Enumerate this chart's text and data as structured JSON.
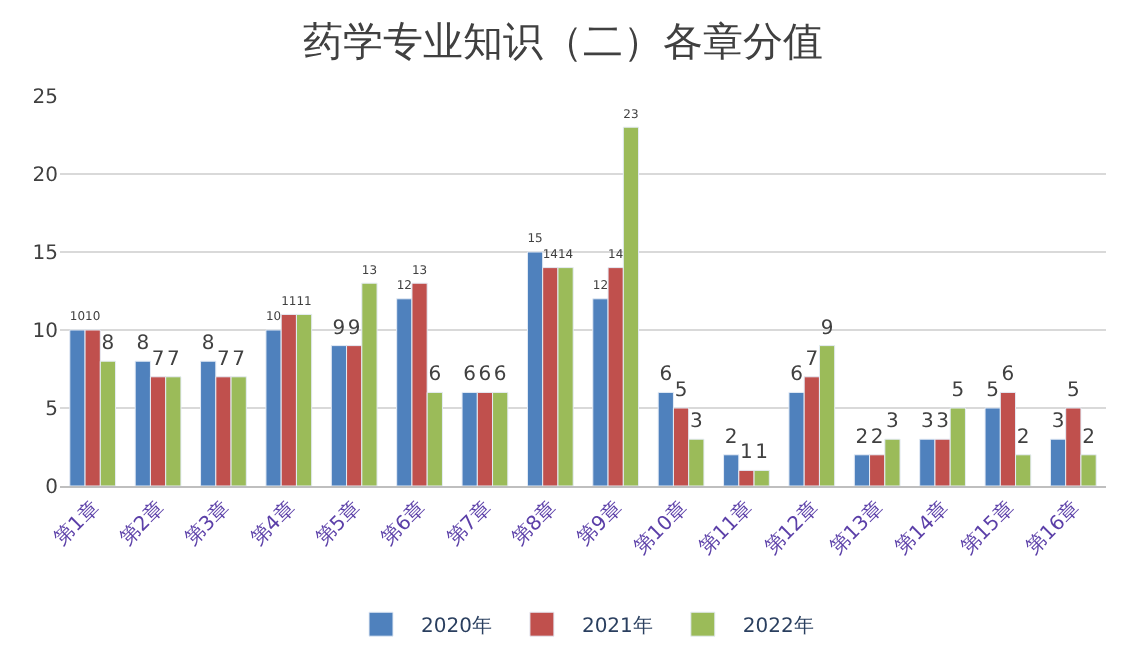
{
  "chart_data": {
    "type": "bar",
    "title": "药学专业知识（二）各章分值",
    "categories": [
      "第1章",
      "第2章",
      "第3章",
      "第4章",
      "第5章",
      "第6章",
      "第7章",
      "第8章",
      "第9章",
      "第10章",
      "第11章",
      "第12章",
      "第13章",
      "第14章",
      "第15章",
      "第16章"
    ],
    "series": [
      {
        "name": "2020年",
        "color": "#4f81bd",
        "values": [
          10,
          8,
          8,
          10,
          9,
          12,
          6,
          15,
          12,
          6,
          2,
          6,
          2,
          3,
          5,
          3
        ]
      },
      {
        "name": "2021年",
        "color": "#c0504d",
        "values": [
          10,
          7,
          7,
          11,
          9,
          13,
          6,
          14,
          14,
          5,
          1,
          7,
          2,
          3,
          6,
          5
        ]
      },
      {
        "name": "2022年",
        "color": "#9bbb59",
        "values": [
          8,
          7,
          7,
          11,
          13,
          6,
          6,
          14,
          23,
          3,
          1,
          9,
          3,
          5,
          2,
          2
        ]
      }
    ],
    "ylim": [
      0,
      25
    ],
    "yticks": [
      0,
      5,
      10,
      15,
      20,
      25
    ],
    "grid": "y",
    "legend": "bottom",
    "data_labels": true
  }
}
